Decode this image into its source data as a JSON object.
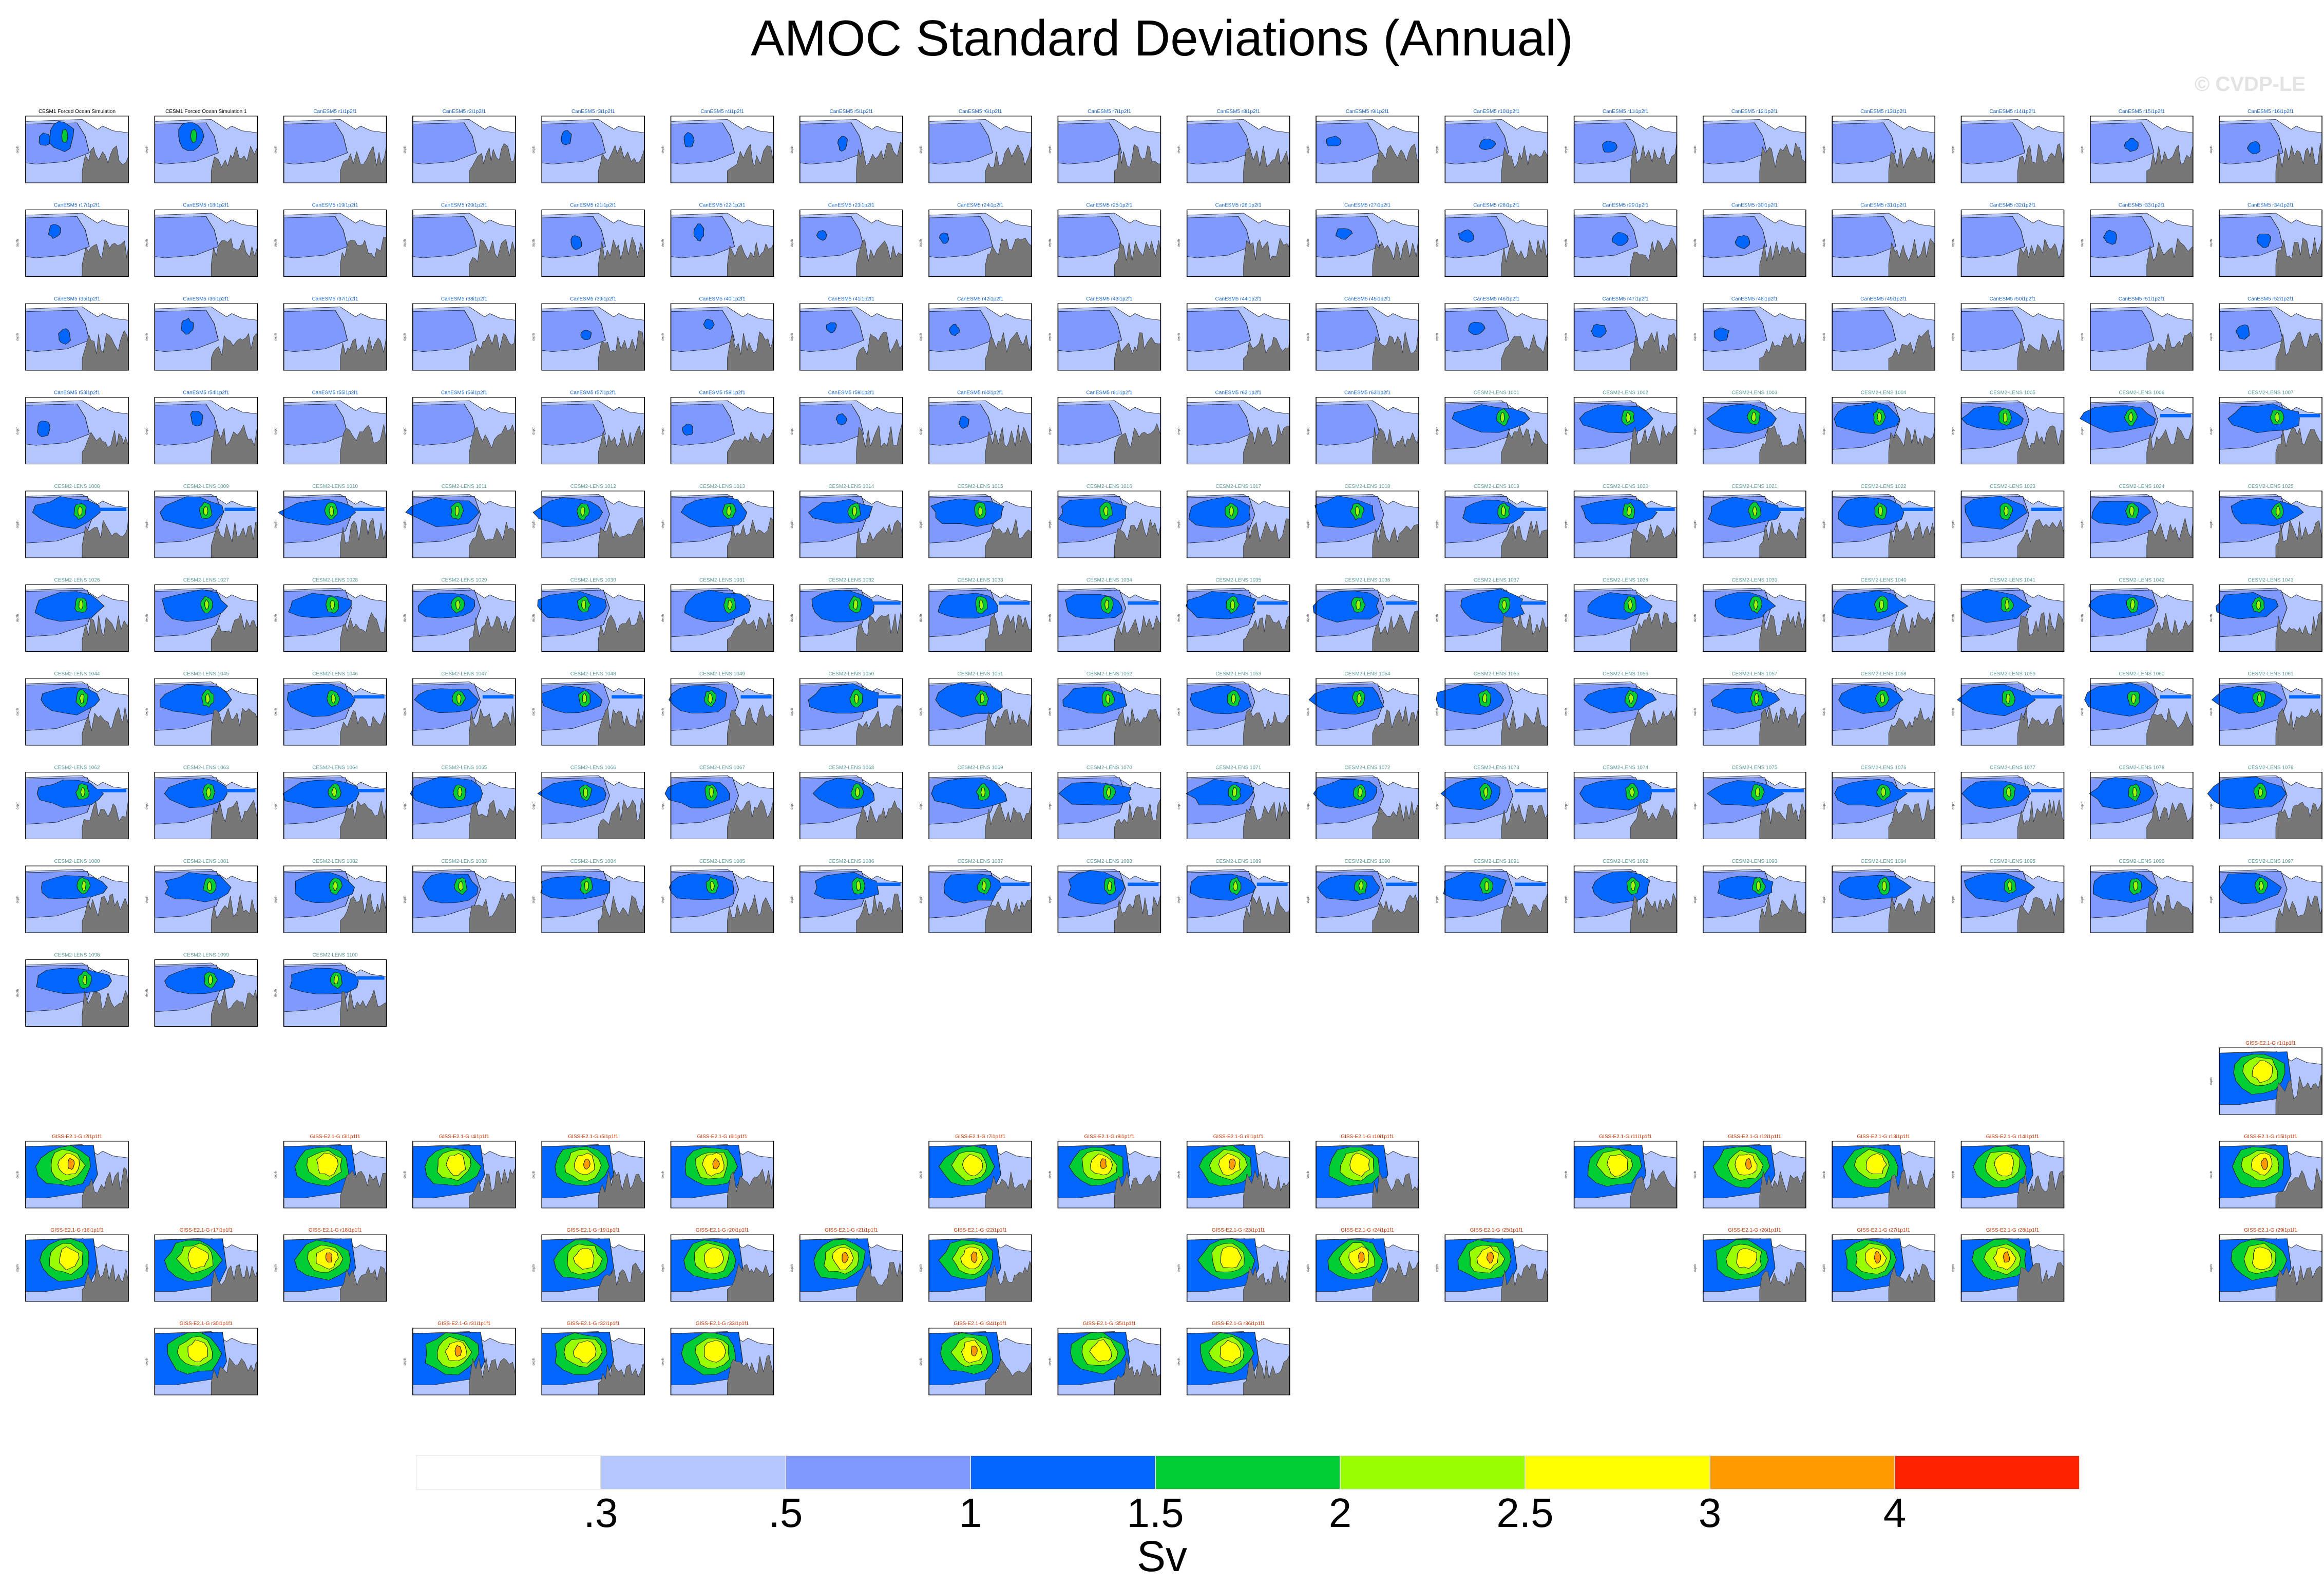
{
  "title": "AMOC Standard Deviations (Annual)",
  "watermark": "© CVDP-LE",
  "units": "Sv",
  "chart_data": {
    "type": "heatmap",
    "title": "AMOC Standard Deviations (Annual)",
    "colorbar": {
      "label": "Sv",
      "tick_labels": [
        ".3",
        ".5",
        "1",
        "1.5",
        "2",
        "2.5",
        "3",
        "4"
      ],
      "levels": [
        0.3,
        0.5,
        1,
        1.5,
        2,
        2.5,
        3,
        4
      ],
      "colors": [
        "#ffffff",
        "#b3c6ff",
        "#8099ff",
        "#0066ff",
        "#00cc33",
        "#99ff00",
        "#ffff00",
        "#ff9900",
        "#ff2200"
      ]
    },
    "panel_groups": [
      {
        "name": "CESM1 Forced Ocean Simulation",
        "count": 2,
        "panel_titles": [
          "CESM1 Forced Ocean Simulation",
          "CESM1 Forced Ocean Simulation 1"
        ],
        "style": "obs"
      },
      {
        "name": "CanESM5",
        "count": 63,
        "style": "low"
      },
      {
        "name": "CESM2-LENS",
        "count": 100,
        "style": "mid"
      },
      {
        "name": "GISS-E2.1-G",
        "count": 45,
        "style": "high"
      }
    ]
  }
}
